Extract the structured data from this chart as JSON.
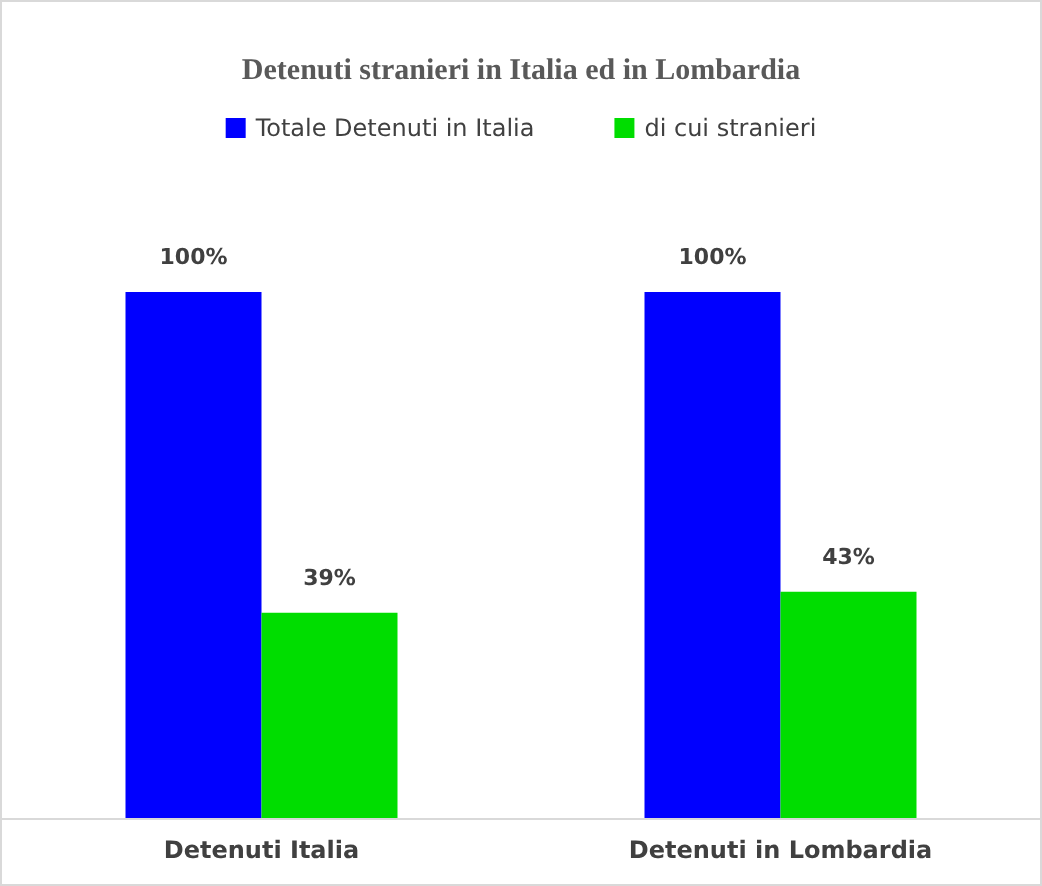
{
  "chart_data": {
    "type": "bar",
    "title": "Detenuti stranieri in Italia ed in Lombardia",
    "categories": [
      "Detenuti Italia",
      "Detenuti in Lombardia"
    ],
    "series": [
      {
        "name": "Totale Detenuti in Italia",
        "color": "#0000ff",
        "values": [
          100,
          100
        ],
        "value_labels": [
          "100%",
          "100%"
        ]
      },
      {
        "name": "di cui stranieri",
        "color": "#00dd00",
        "values": [
          39,
          43
        ],
        "value_labels": [
          "39%",
          "43%"
        ]
      }
    ],
    "legend": "top"
  }
}
